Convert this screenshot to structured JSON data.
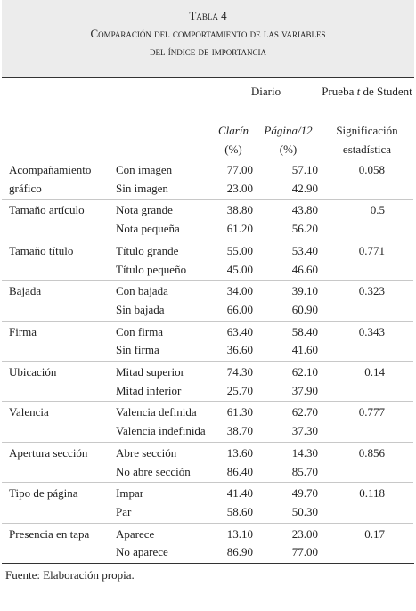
{
  "header": {
    "label": "Tabla 4",
    "title_line1": "Comparación del comportamiento de las variables",
    "title_line2": "del índice de importancia"
  },
  "columns": {
    "diario": "Diario",
    "prueba": {
      "before": "Prueba",
      "italic": "t",
      "after": "de Student"
    },
    "clarin": {
      "name": "Clarín",
      "unit": "(%)"
    },
    "pagina12": {
      "name": "Página/12",
      "unit": "(%)"
    },
    "significance": "Significación estadística"
  },
  "rows": [
    {
      "variable": "Acompañamiento gráfico",
      "significance": "0.058",
      "categories": [
        {
          "label": "Con imagen",
          "clarin": "77.00",
          "pagina12": "57.10"
        },
        {
          "label": "Sin imagen",
          "clarin": "23.00",
          "pagina12": "42.90"
        }
      ]
    },
    {
      "variable": "Tamaño artículo",
      "significance": "0.5",
      "categories": [
        {
          "label": "Nota grande",
          "clarin": "38.80",
          "pagina12": "43.80"
        },
        {
          "label": "Nota pequeña",
          "clarin": "61.20",
          "pagina12": "56.20"
        }
      ]
    },
    {
      "variable": "Tamaño título",
      "significance": "0.771",
      "categories": [
        {
          "label": "Título grande",
          "clarin": "55.00",
          "pagina12": "53.40"
        },
        {
          "label": "Título pequeño",
          "clarin": "45.00",
          "pagina12": "46.60"
        }
      ]
    },
    {
      "variable": "Bajada",
      "significance": "0.323",
      "categories": [
        {
          "label": "Con bajada",
          "clarin": "34.00",
          "pagina12": "39.10"
        },
        {
          "label": "Sin bajada",
          "clarin": "66.00",
          "pagina12": "60.90"
        }
      ]
    },
    {
      "variable": "Firma",
      "significance": "0.343",
      "categories": [
        {
          "label": "Con firma",
          "clarin": "63.40",
          "pagina12": "58.40"
        },
        {
          "label": "Sin firma",
          "clarin": "36.60",
          "pagina12": "41.60"
        }
      ]
    },
    {
      "variable": "Ubicación",
      "significance": "0.14",
      "categories": [
        {
          "label": "Mitad superior",
          "clarin": "74.30",
          "pagina12": "62.10"
        },
        {
          "label": "Mitad inferior",
          "clarin": "25.70",
          "pagina12": "37.90"
        }
      ]
    },
    {
      "variable": "Valencia",
      "significance": "0.777",
      "categories": [
        {
          "label": "Valencia definida",
          "clarin": "61.30",
          "pagina12": "62.70"
        },
        {
          "label": "Valencia indefinida",
          "clarin": "38.70",
          "pagina12": "37.30"
        }
      ]
    },
    {
      "variable": "Apertura sección",
      "significance": "0.856",
      "categories": [
        {
          "label": "Abre sección",
          "clarin": "13.60",
          "pagina12": "14.30"
        },
        {
          "label": "No abre sección",
          "clarin": "86.40",
          "pagina12": "85.70"
        }
      ]
    },
    {
      "variable": "Tipo de página",
      "significance": "0.118",
      "categories": [
        {
          "label": "Impar",
          "clarin": "41.40",
          "pagina12": "49.70"
        },
        {
          "label": "Par",
          "clarin": "58.60",
          "pagina12": "50.30"
        }
      ]
    },
    {
      "variable": "Presencia en tapa",
      "significance": "0.17",
      "categories": [
        {
          "label": "Aparece",
          "clarin": "13.10",
          "pagina12": "23.00"
        },
        {
          "label": "No aparece",
          "clarin": "86.90",
          "pagina12": "77.00"
        }
      ]
    }
  ],
  "source": "Fuente: Elaboración propia."
}
